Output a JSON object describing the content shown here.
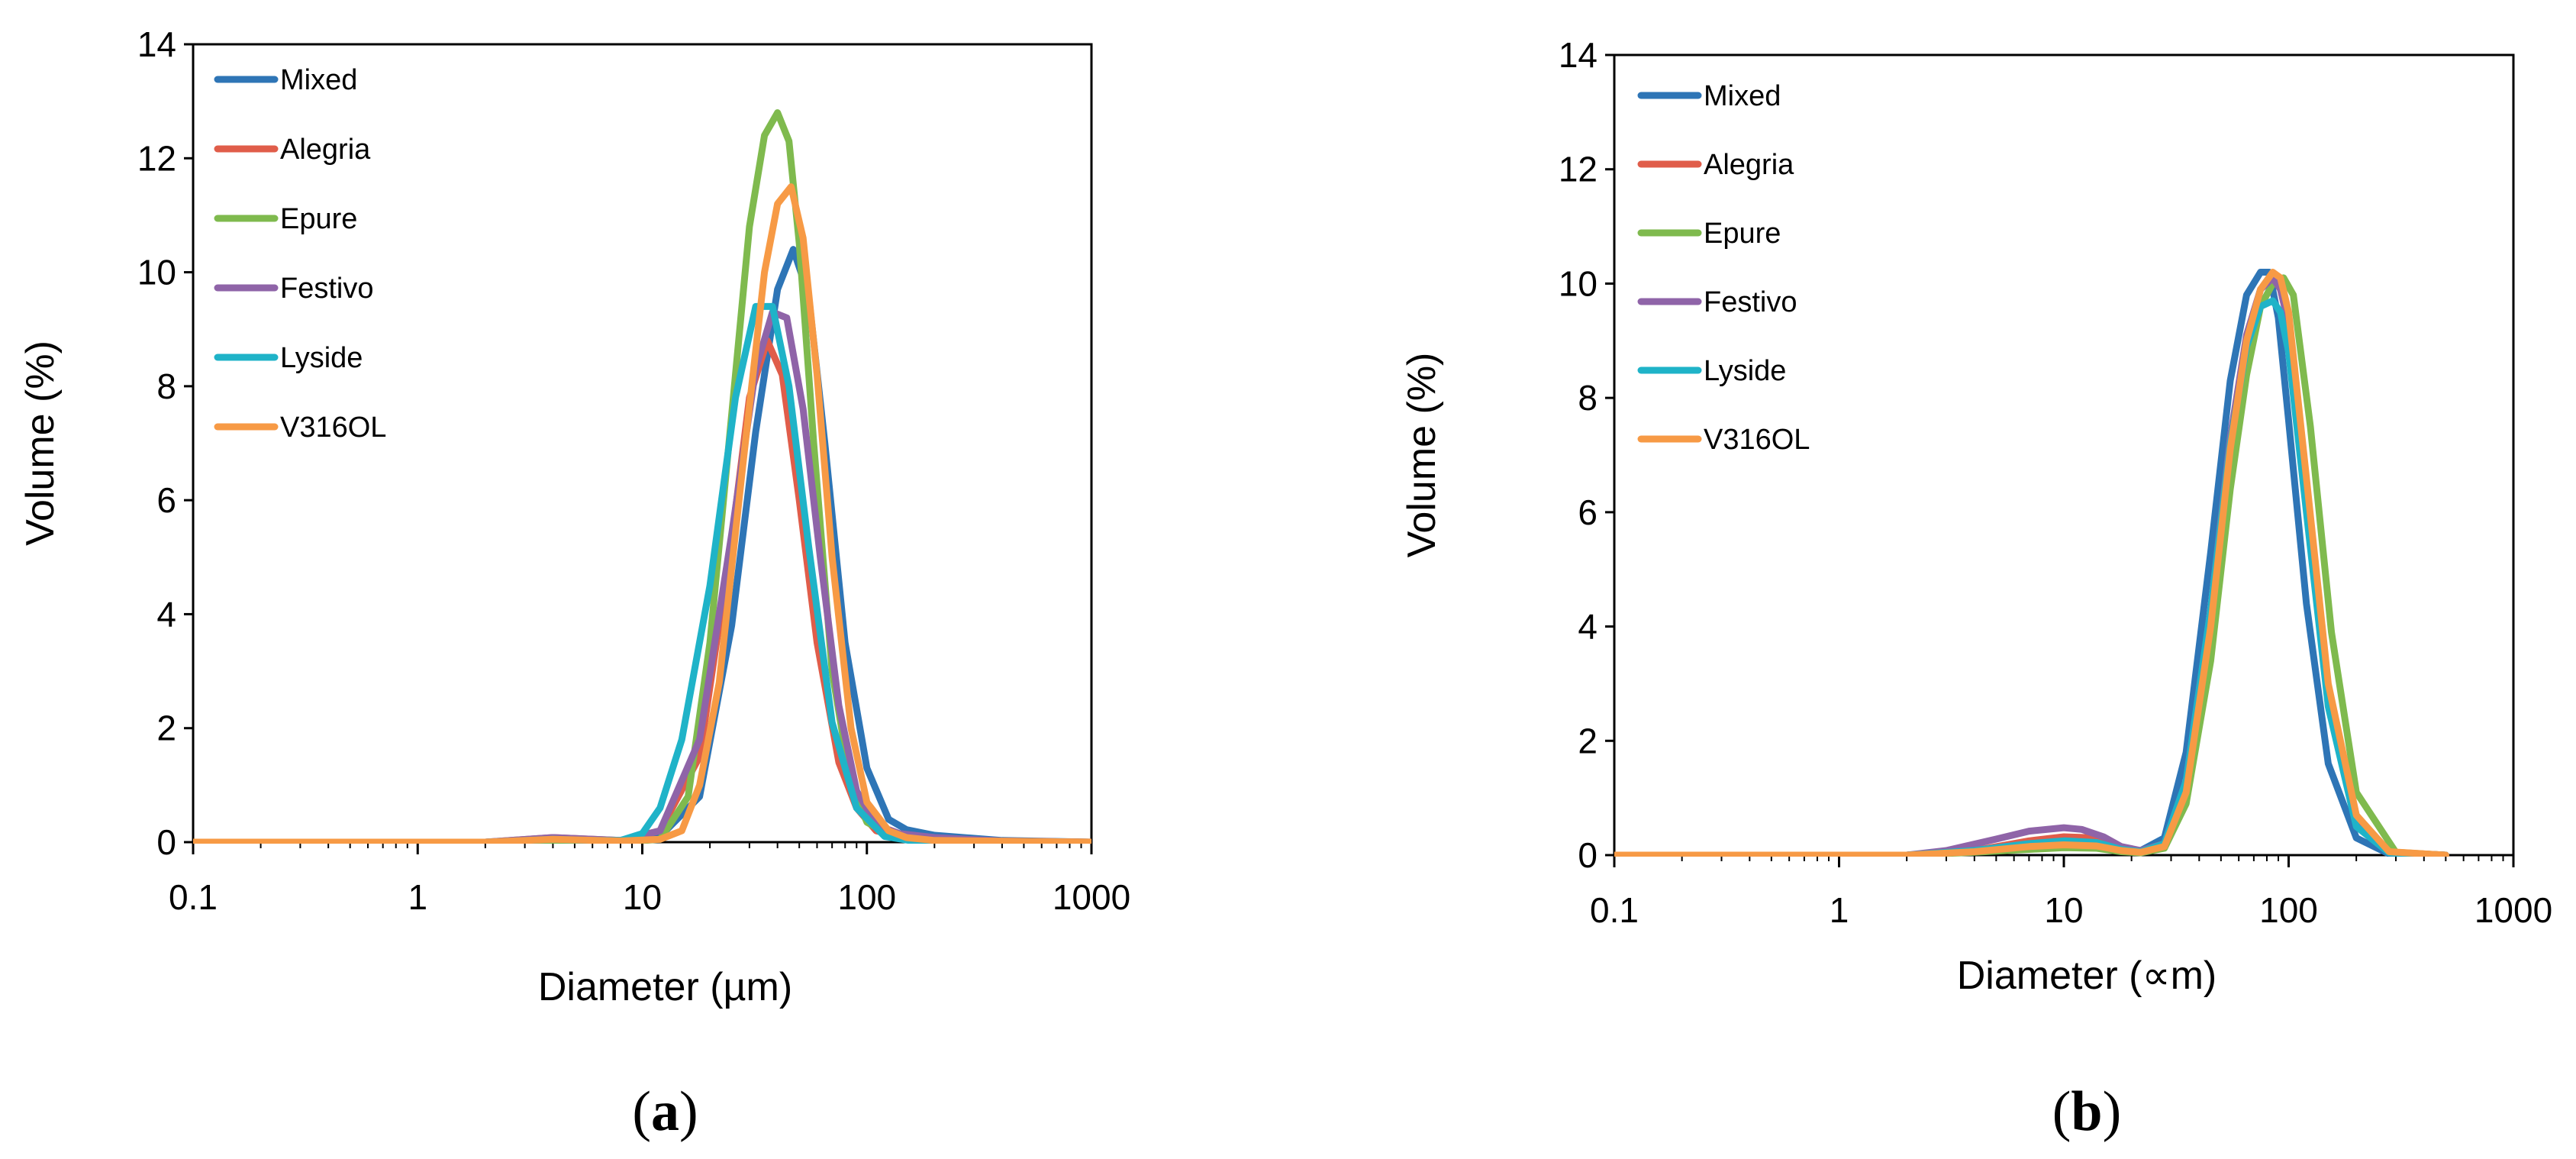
{
  "chart_data": [
    {
      "type": "line",
      "panel_label": "(a)",
      "panel_letter": "a",
      "xlabel": "Diameter (µm)",
      "ylabel": "Volume (%)",
      "xscale": "log",
      "xlim": [
        0.1,
        1000
      ],
      "ylim": [
        0,
        14
      ],
      "x_ticks": [
        "0.1",
        "1",
        "10",
        "100",
        "1000"
      ],
      "y_ticks": [
        "0",
        "2",
        "4",
        "6",
        "8",
        "10",
        "12",
        "14"
      ],
      "legend_position": "top-left",
      "series": [
        {
          "name": "Mixed",
          "color": "#2e75b6",
          "x": [
            0.1,
            2,
            4,
            8,
            12,
            18,
            25,
            32,
            40,
            47,
            55,
            65,
            80,
            100,
            125,
            150,
            200,
            400,
            1000
          ],
          "y": [
            0,
            0,
            0.05,
            0.02,
            0.1,
            0.8,
            3.8,
            7.2,
            9.7,
            10.4,
            9.6,
            7.0,
            3.5,
            1.3,
            0.4,
            0.22,
            0.12,
            0.03,
            0
          ]
        },
        {
          "name": "Alegria",
          "color": "#e05d4a",
          "x": [
            0.1,
            2,
            4,
            8,
            12,
            18,
            25,
            30,
            36,
            42,
            50,
            60,
            75,
            90,
            110,
            140,
            200,
            1000
          ],
          "y": [
            0,
            0,
            0.08,
            0.03,
            0.2,
            1.5,
            5.3,
            7.8,
            8.8,
            8.2,
            6.0,
            3.5,
            1.4,
            0.6,
            0.2,
            0.1,
            0.03,
            0
          ]
        },
        {
          "name": "Epure",
          "color": "#7fba4e",
          "x": [
            0.1,
            8,
            12,
            16,
            20,
            25,
            30,
            35,
            40,
            45,
            50,
            58,
            70,
            85,
            100,
            130,
            200,
            1000
          ],
          "y": [
            0,
            0,
            0.05,
            0.8,
            3.5,
            7.5,
            10.8,
            12.4,
            12.8,
            12.3,
            10.5,
            7.0,
            3.0,
            1.0,
            0.35,
            0.1,
            0.02,
            0
          ]
        },
        {
          "name": "Festivo",
          "color": "#8f64a8",
          "x": [
            0.1,
            2,
            4,
            8,
            12,
            18,
            25,
            32,
            38,
            44,
            52,
            62,
            75,
            90,
            110,
            140,
            200,
            400,
            1000
          ],
          "y": [
            0,
            0,
            0.08,
            0.03,
            0.2,
            1.8,
            5.4,
            8.3,
            9.3,
            9.2,
            7.6,
            5.0,
            2.4,
            0.9,
            0.3,
            0.15,
            0.08,
            0.02,
            0
          ]
        },
        {
          "name": "Lyside",
          "color": "#1fb3c8",
          "x": [
            0.1,
            2,
            4,
            6,
            8,
            10,
            12,
            15,
            20,
            26,
            32,
            38,
            45,
            55,
            70,
            90,
            120,
            160,
            250,
            1000
          ],
          "y": [
            0,
            0,
            0.05,
            0.03,
            0.03,
            0.15,
            0.6,
            1.8,
            4.5,
            7.8,
            9.4,
            9.4,
            8.0,
            5.2,
            2.1,
            0.6,
            0.1,
            0.02,
            0,
            0
          ]
        },
        {
          "name": "V316OL",
          "color": "#f79a45",
          "x": [
            0.1,
            2,
            4,
            8,
            12,
            15,
            18,
            22,
            28,
            35,
            40,
            46,
            52,
            60,
            70,
            85,
            100,
            125,
            150,
            200,
            1000
          ],
          "y": [
            0,
            0,
            0.05,
            0.02,
            0.05,
            0.2,
            1.0,
            2.8,
            6.6,
            10.0,
            11.2,
            11.5,
            10.6,
            8.2,
            5.0,
            2.0,
            0.7,
            0.2,
            0.08,
            0.03,
            0
          ]
        }
      ]
    },
    {
      "type": "line",
      "panel_label": "(b)",
      "panel_letter": "b",
      "xlabel": "Diameter (∝m)",
      "ylabel": "Volume (%)",
      "xscale": "log",
      "xlim": [
        0.1,
        1000
      ],
      "ylim": [
        0,
        14
      ],
      "x_ticks": [
        "0.1",
        "1",
        "10",
        "100",
        "1000"
      ],
      "y_ticks": [
        "0",
        "2",
        "4",
        "6",
        "8",
        "10",
        "12",
        "14"
      ],
      "legend_position": "top-left",
      "series": [
        {
          "name": "Mixed",
          "color": "#2e75b6",
          "x": [
            0.1,
            2,
            4,
            7,
            10,
            14,
            18,
            22,
            28,
            35,
            45,
            55,
            65,
            75,
            82,
            90,
            100,
            120,
            150,
            200,
            280,
            500
          ],
          "y": [
            0,
            0,
            0.08,
            0.22,
            0.3,
            0.28,
            0.12,
            0.08,
            0.3,
            1.8,
            5.3,
            8.3,
            9.8,
            10.2,
            10.2,
            9.4,
            7.6,
            4.4,
            1.6,
            0.3,
            0.02,
            0
          ]
        },
        {
          "name": "Alegria",
          "color": "#e05d4a",
          "x": [
            0.1,
            2,
            4,
            7,
            10,
            14,
            18,
            22,
            28,
            35,
            45,
            55,
            65,
            75,
            85,
            92,
            100,
            120,
            150,
            200,
            280,
            500
          ],
          "y": [
            0,
            0,
            0.08,
            0.25,
            0.32,
            0.3,
            0.12,
            0.06,
            0.2,
            1.2,
            4.2,
            7.2,
            9.0,
            9.9,
            10.1,
            9.9,
            9.3,
            6.4,
            2.8,
            0.6,
            0.05,
            0
          ]
        },
        {
          "name": "Epure",
          "color": "#7fba4e",
          "x": [
            0.1,
            2,
            4,
            7,
            10,
            14,
            18,
            22,
            28,
            35,
            45,
            55,
            65,
            75,
            85,
            95,
            105,
            125,
            155,
            200,
            300,
            500
          ],
          "y": [
            0,
            0,
            0.05,
            0.1,
            0.13,
            0.12,
            0.06,
            0.04,
            0.12,
            0.9,
            3.4,
            6.4,
            8.4,
            9.6,
            10.0,
            10.1,
            9.8,
            7.5,
            3.9,
            1.1,
            0.05,
            0
          ]
        },
        {
          "name": "Festivo",
          "color": "#8f64a8",
          "x": [
            0.1,
            2,
            3,
            5,
            7,
            10,
            12,
            15,
            18,
            22,
            28,
            35,
            45,
            55,
            65,
            75,
            85,
            92,
            100,
            120,
            150,
            200,
            280,
            500
          ],
          "y": [
            0,
            0,
            0.08,
            0.28,
            0.42,
            0.48,
            0.45,
            0.32,
            0.15,
            0.08,
            0.2,
            1.3,
            4.3,
            7.3,
            9.1,
            9.9,
            10.1,
            9.9,
            9.3,
            6.4,
            2.8,
            0.6,
            0.05,
            0
          ]
        },
        {
          "name": "Lyside",
          "color": "#1fb3c8",
          "x": [
            0.1,
            2,
            4,
            7,
            10,
            14,
            18,
            22,
            28,
            35,
            45,
            55,
            65,
            75,
            85,
            92,
            100,
            120,
            150,
            200,
            280,
            500
          ],
          "y": [
            0,
            0,
            0.08,
            0.2,
            0.25,
            0.22,
            0.1,
            0.06,
            0.2,
            1.3,
            4.3,
            7.2,
            8.9,
            9.6,
            9.7,
            9.5,
            8.8,
            6.0,
            2.6,
            0.5,
            0.04,
            0
          ]
        },
        {
          "name": "V316OL",
          "color": "#f79a45",
          "x": [
            0.1,
            2,
            4,
            7,
            10,
            14,
            18,
            22,
            28,
            35,
            45,
            55,
            65,
            75,
            85,
            92,
            100,
            120,
            150,
            200,
            280,
            500
          ],
          "y": [
            0,
            0,
            0.06,
            0.15,
            0.18,
            0.16,
            0.08,
            0.05,
            0.15,
            1.1,
            4.0,
            7.1,
            9.0,
            9.9,
            10.2,
            10.1,
            9.5,
            6.6,
            3.0,
            0.7,
            0.06,
            0
          ]
        }
      ]
    }
  ]
}
